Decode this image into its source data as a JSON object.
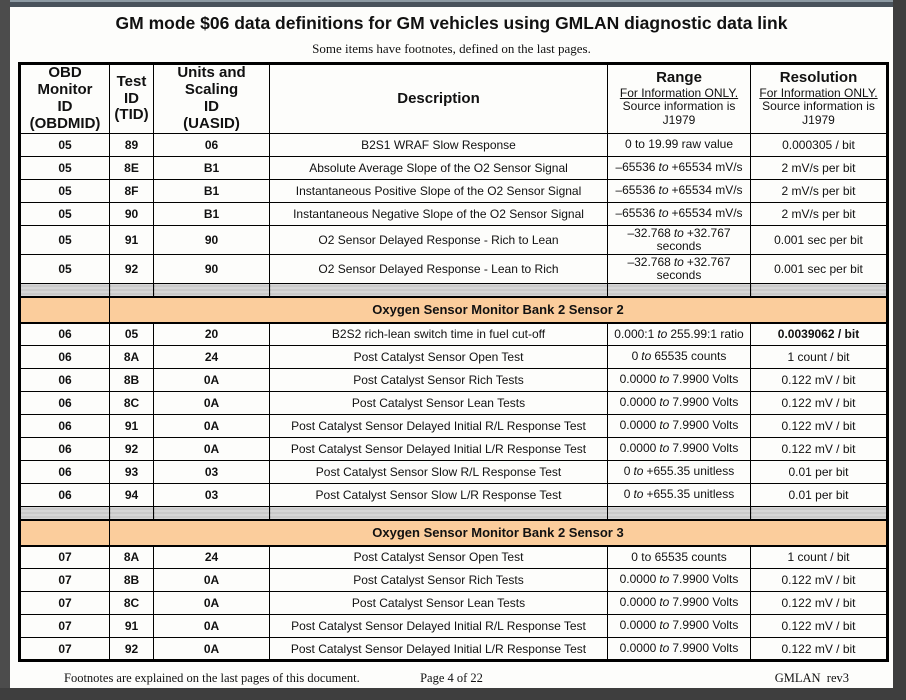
{
  "page": {
    "title": "GM mode $06 data definitions for GM vehicles using GMLAN diagnostic data link",
    "subtitle": "Some items have footnotes, defined on the last pages.",
    "footer": {
      "left": "Footnotes are explained on the last pages of this document.",
      "center": "Page 4 of 22",
      "right": "GMLAN  rev3"
    }
  },
  "colors": {
    "section_header_bg": "#FBCD9C",
    "separator_fill": "#CBCBCB",
    "page_bg": "#FDFDFB",
    "frame_dark": "#3E3E3E",
    "frame_left": "#4C4C4C",
    "frame_top": "#49525B",
    "frame_top_light": "#8D9AA3"
  },
  "table": {
    "headers": {
      "obdmid": "OBD\nMonitor\nID\n(OBDMID)",
      "tid": "Test\nID\n(TID)",
      "uasid": "Units and\nScaling\nID\n(UASID)",
      "description": "Description",
      "range": {
        "title": "Range",
        "note_underlined": "For Information ONLY.",
        "note": "Source information is\nJ1979"
      },
      "resolution": {
        "title": "Resolution",
        "note_underlined": "For Information ONLY.",
        "note": "Source information is\nJ1979"
      }
    },
    "groups": [
      {
        "type": "rows",
        "rows": [
          {
            "obdmid": "05",
            "tid": "89",
            "uasid": "06",
            "desc": "B2S1 WRAF Slow Response",
            "range": {
              "pre": "0 to 19.99 raw value",
              "to": "",
              "post": ""
            },
            "res": "0.000305 / bit"
          },
          {
            "obdmid": "05",
            "tid": "8E",
            "uasid": "B1",
            "desc": "Absolute Average Slope of the O2 Sensor Signal",
            "range": {
              "pre": "–65536",
              "to": "to",
              "post": "+65534 mV/s"
            },
            "res": "2 mV/s per bit"
          },
          {
            "obdmid": "05",
            "tid": "8F",
            "uasid": "B1",
            "desc": "Instantaneous Positive Slope of the O2 Sensor Signal",
            "range": {
              "pre": "–65536",
              "to": "to",
              "post": "+65534 mV/s"
            },
            "res": "2 mV/s per bit"
          },
          {
            "obdmid": "05",
            "tid": "90",
            "uasid": "B1",
            "desc": "Instantaneous Negative Slope of the O2 Sensor Signal",
            "range": {
              "pre": "–65536",
              "to": "to",
              "post": "+65534 mV/s"
            },
            "res": "2 mV/s per bit"
          },
          {
            "obdmid": "05",
            "tid": "91",
            "uasid": "90",
            "desc": "O2 Sensor Delayed Response - Rich to Lean",
            "range": {
              "pre": "–32.768",
              "to": "to",
              "post": "+32.767\nseconds"
            },
            "res": "0.001 sec per bit",
            "tall": true
          },
          {
            "obdmid": "05",
            "tid": "92",
            "uasid": "90",
            "desc": "O2 Sensor Delayed Response - Lean to Rich",
            "range": {
              "pre": "–32.768",
              "to": "to",
              "post": "+32.767\nseconds"
            },
            "res": "0.001 sec per bit",
            "tall": true
          }
        ]
      },
      {
        "type": "separator"
      },
      {
        "type": "section",
        "label": "Oxygen Sensor Monitor Bank 2 Sensor 2"
      },
      {
        "type": "rows",
        "rows": [
          {
            "obdmid": "06",
            "tid": "05",
            "uasid": "20",
            "desc": "B2S2 rich-lean switch time in fuel cut-off",
            "range": {
              "pre": "0.000:1",
              "to": "to",
              "post": "255.99:1  ratio"
            },
            "res": "0.0039062 / bit",
            "res_bold": true
          },
          {
            "obdmid": "06",
            "tid": "8A",
            "uasid": "24",
            "desc": "Post Catalyst Sensor Open Test",
            "range": {
              "pre": "0",
              "to": "to",
              "post": "65535 counts"
            },
            "res": "1 count / bit"
          },
          {
            "obdmid": "06",
            "tid": "8B",
            "uasid": "0A",
            "desc": "Post Catalyst Sensor Rich Tests",
            "range": {
              "pre": "0.0000",
              "to": "to",
              "post": "7.9900 Volts"
            },
            "res": "0.122 mV / bit"
          },
          {
            "obdmid": "06",
            "tid": "8C",
            "uasid": "0A",
            "desc": "Post Catalyst Sensor Lean Tests",
            "range": {
              "pre": "0.0000",
              "to": "to",
              "post": "7.9900 Volts"
            },
            "res": "0.122 mV / bit"
          },
          {
            "obdmid": "06",
            "tid": "91",
            "uasid": "0A",
            "desc": "Post Catalyst Sensor Delayed Initial R/L Response Test",
            "range": {
              "pre": "0.0000",
              "to": "to",
              "post": "7.9900 Volts"
            },
            "res": "0.122 mV / bit"
          },
          {
            "obdmid": "06",
            "tid": "92",
            "uasid": "0A",
            "desc": "Post Catalyst Sensor Delayed Initial L/R Response Test",
            "range": {
              "pre": "0.0000",
              "to": "to",
              "post": "7.9900 Volts"
            },
            "res": "0.122 mV / bit"
          },
          {
            "obdmid": "06",
            "tid": "93",
            "uasid": "03",
            "desc": "Post Catalyst Sensor Slow R/L Response Test",
            "range": {
              "pre": "0",
              "to": "to",
              "post": "+655.35 unitless"
            },
            "res": "0.01 per bit"
          },
          {
            "obdmid": "06",
            "tid": "94",
            "uasid": "03",
            "desc": "Post Catalyst Sensor Slow L/R Response Test",
            "range": {
              "pre": "0",
              "to": "to",
              "post": "+655.35 unitless"
            },
            "res": "0.01 per bit"
          }
        ]
      },
      {
        "type": "separator"
      },
      {
        "type": "section",
        "label": "Oxygen Sensor Monitor Bank 2 Sensor 3"
      },
      {
        "type": "rows",
        "rows": [
          {
            "obdmid": "07",
            "tid": "8A",
            "uasid": "24",
            "desc": "Post Catalyst Sensor Open Test",
            "range": {
              "pre": "0 to 65535 counts",
              "to": "",
              "post": ""
            },
            "res": "1 count / bit"
          },
          {
            "obdmid": "07",
            "tid": "8B",
            "uasid": "0A",
            "desc": "Post Catalyst Sensor Rich Tests",
            "range": {
              "pre": "0.0000",
              "to": "to",
              "post": "7.9900 Volts"
            },
            "res": "0.122 mV / bit"
          },
          {
            "obdmid": "07",
            "tid": "8C",
            "uasid": "0A",
            "desc": "Post Catalyst Sensor Lean Tests",
            "range": {
              "pre": "0.0000",
              "to": "to",
              "post": "7.9900 Volts"
            },
            "res": "0.122 mV / bit"
          },
          {
            "obdmid": "07",
            "tid": "91",
            "uasid": "0A",
            "desc": "Post Catalyst Sensor Delayed Initial R/L Response Test",
            "range": {
              "pre": "0.0000",
              "to": "to",
              "post": "7.9900 Volts"
            },
            "res": "0.122 mV / bit"
          },
          {
            "obdmid": "07",
            "tid": "92",
            "uasid": "0A",
            "desc": "Post Catalyst Sensor Delayed Initial L/R Response Test",
            "range": {
              "pre": "0.0000",
              "to": "to",
              "post": "7.9900 Volts"
            },
            "res": "0.122 mV / bit"
          }
        ]
      }
    ]
  }
}
